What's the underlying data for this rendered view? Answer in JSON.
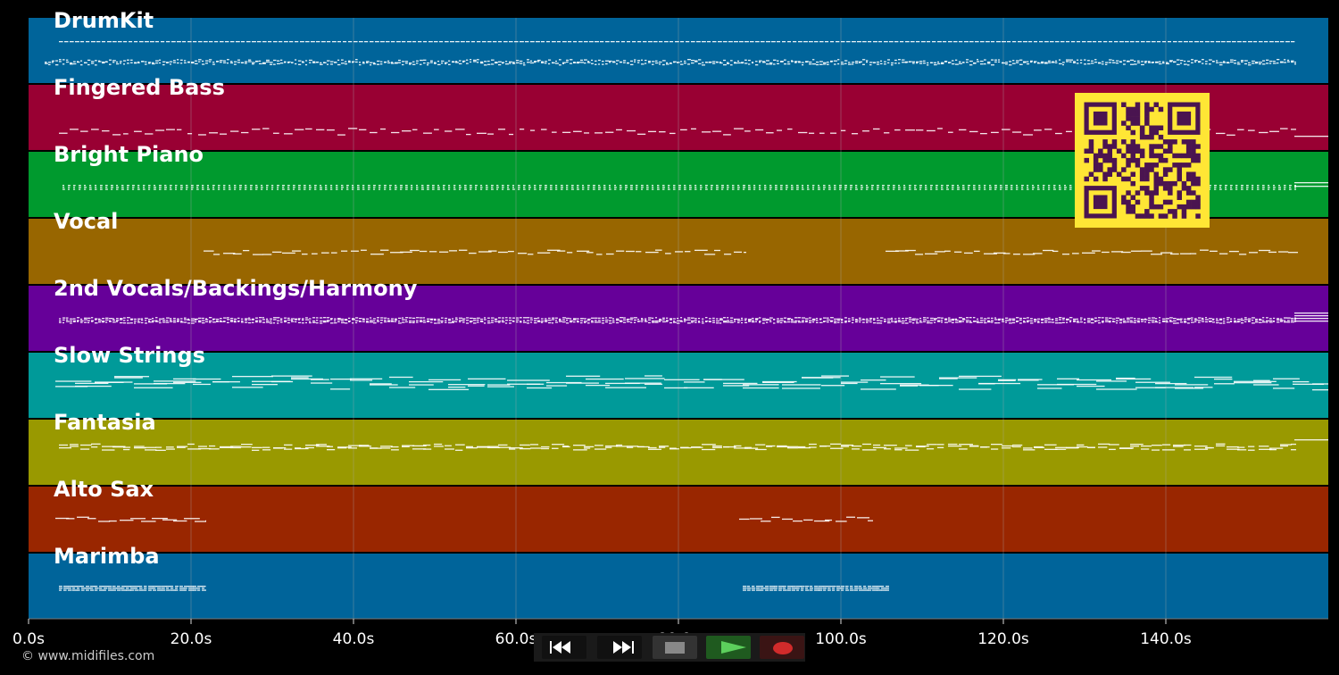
{
  "tracks": [
    {
      "name": "DrumKit",
      "color": "#00649a",
      "pattern": "drums"
    },
    {
      "name": "Fingered Bass",
      "color": "#990033",
      "pattern": "bass"
    },
    {
      "name": "Bright Piano",
      "color": "#009a2e",
      "pattern": "piano"
    },
    {
      "name": "Vocal",
      "color": "#986600",
      "pattern": "vocal"
    },
    {
      "name": "2nd Vocals/Backings/Harmony",
      "color": "#660099",
      "pattern": "harmony"
    },
    {
      "name": "Slow Strings",
      "color": "#009a99",
      "pattern": "strings"
    },
    {
      "name": "Fantasia",
      "color": "#999900",
      "pattern": "fantasia"
    },
    {
      "name": "Alto Sax",
      "color": "#992600",
      "pattern": "sax"
    },
    {
      "name": "Marimba",
      "color": "#00649a",
      "pattern": "marimba"
    }
  ],
  "timeline": {
    "tick_labels": [
      "0.0s",
      "20.0s",
      "40.0s",
      "60.0s",
      "80.0s",
      "100.0s",
      "120.0s",
      "140.0s"
    ],
    "tick_seconds": [
      0,
      20,
      40,
      60,
      80,
      100,
      120,
      140
    ],
    "end_seconds": 160
  },
  "copyright": "© www.midifiles.com",
  "transport": {
    "buttons": [
      {
        "name": "rewind-button",
        "icon": "rewind-icon",
        "color": "#111111"
      },
      {
        "name": "fast-forward-button",
        "icon": "fast-forward-icon",
        "color": "#111111"
      },
      {
        "name": "stop-button",
        "icon": "stop-icon",
        "color": "#333333"
      },
      {
        "name": "play-button",
        "icon": "play-icon",
        "color": "#1f5a1f"
      },
      {
        "name": "record-button",
        "icon": "record-icon",
        "color": "#3a1414"
      }
    ]
  },
  "qr_code": {
    "icon": "qr-code-icon",
    "background": "#ffe635",
    "foreground": "#4a1450"
  },
  "colors": {
    "background": "#000000",
    "notes": "#ffffff",
    "grid": "#aaaaaa"
  }
}
